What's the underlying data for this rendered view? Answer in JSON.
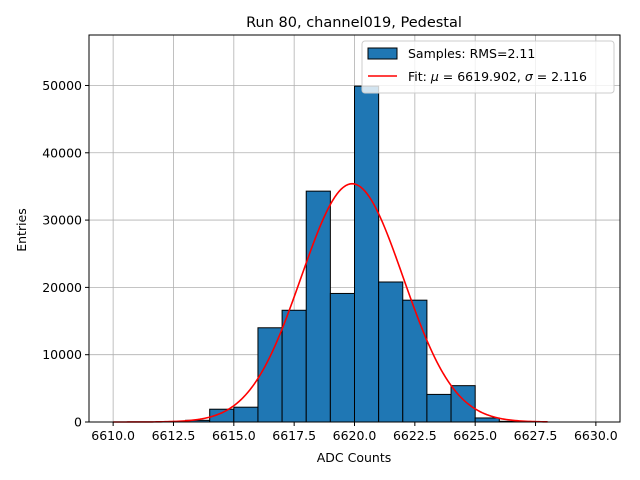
{
  "chart_data": {
    "type": "bar",
    "title": "Run 80, channel019, Pedestal",
    "xlabel": "ADC Counts",
    "ylabel": "Entries",
    "xlim": [
      6609.0,
      6631.0
    ],
    "ylim": [
      0,
      57500
    ],
    "grid": true,
    "legend_position": "top-right",
    "x_ticks": [
      6610.0,
      6612.5,
      6615.0,
      6617.5,
      6620.0,
      6622.5,
      6625.0,
      6627.5,
      6630.0
    ],
    "x_tick_labels": [
      "6610.0",
      "6612.5",
      "6615.0",
      "6617.5",
      "6620.0",
      "6622.5",
      "6625.0",
      "6627.5",
      "6630.0"
    ],
    "y_ticks": [
      0,
      10000,
      20000,
      30000,
      40000,
      50000
    ],
    "y_tick_labels": [
      "0",
      "10000",
      "20000",
      "30000",
      "40000",
      "50000"
    ],
    "bar_color": "#1f77b4",
    "fit_color": "#ff0000",
    "series": [
      {
        "name": "Samples: RMS=2.11",
        "kind": "histogram",
        "bins": [
          {
            "x0": 6612.0,
            "x1": 6613.0,
            "value": 30
          },
          {
            "x0": 6613.0,
            "x1": 6614.0,
            "value": 250
          },
          {
            "x0": 6614.0,
            "x1": 6615.0,
            "value": 1900
          },
          {
            "x0": 6615.0,
            "x1": 6616.0,
            "value": 2200
          },
          {
            "x0": 6616.0,
            "x1": 6617.0,
            "value": 14000
          },
          {
            "x0": 6617.0,
            "x1": 6618.0,
            "value": 16600
          },
          {
            "x0": 6618.0,
            "x1": 6619.0,
            "value": 34300
          },
          {
            "x0": 6619.0,
            "x1": 6620.0,
            "value": 19100
          },
          {
            "x0": 6620.0,
            "x1": 6621.0,
            "value": 49900
          },
          {
            "x0": 6621.0,
            "x1": 6622.0,
            "value": 20800
          },
          {
            "x0": 6622.0,
            "x1": 6623.0,
            "value": 18100
          },
          {
            "x0": 6623.0,
            "x1": 6624.0,
            "value": 4100
          },
          {
            "x0": 6624.0,
            "x1": 6625.0,
            "value": 5400
          },
          {
            "x0": 6625.0,
            "x1": 6626.0,
            "value": 600
          },
          {
            "x0": 6626.0,
            "x1": 6627.0,
            "value": 100
          }
        ]
      },
      {
        "name": "Fit: μ = 6619.902, σ = 2.116",
        "kind": "gaussian_fit",
        "mu": 6619.902,
        "sigma": 2.116,
        "amplitude": 35400,
        "x_range": [
          6610.0,
          6628.0
        ]
      }
    ],
    "legend": {
      "samples_label": "Samples: RMS=2.11",
      "fit_prefix": "Fit: ",
      "fit_mu_symbol": "μ",
      "fit_mu_value": " = 6619.902, ",
      "fit_sigma_symbol": "σ",
      "fit_sigma_value": " = 2.116"
    }
  }
}
